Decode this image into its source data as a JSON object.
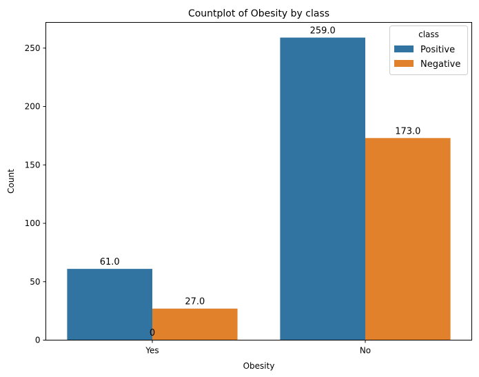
{
  "chart_data": {
    "type": "bar",
    "title": "Countplot of Obesity by class",
    "xlabel": "Obesity",
    "ylabel": "Count",
    "categories": [
      "Yes",
      "No"
    ],
    "series": [
      {
        "name": "Positive",
        "values": [
          61,
          259
        ],
        "color": "#3274a1"
      },
      {
        "name": "Negative",
        "values": [
          27,
          173
        ],
        "color": "#e1812c"
      }
    ],
    "bar_labels": [
      [
        "61.0",
        "259.0"
      ],
      [
        "27.0",
        "173.0"
      ]
    ],
    "extra_annotation": "0",
    "ylim": [
      0,
      272
    ],
    "yticks": [
      0,
      50,
      100,
      150,
      200,
      250
    ],
    "legend": {
      "title": "class",
      "placement": "top-right"
    },
    "grid": false
  }
}
